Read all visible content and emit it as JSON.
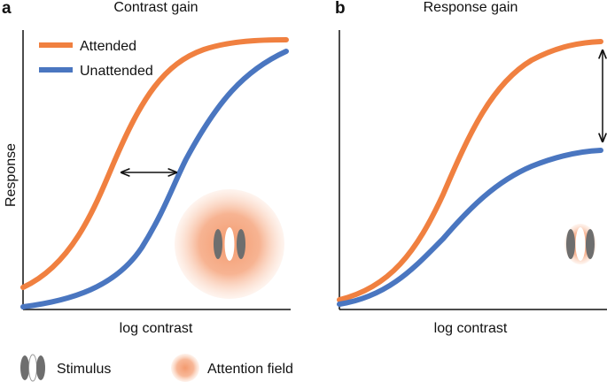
{
  "panels": [
    {
      "letter": "a",
      "title": "Contrast gain",
      "xlabel": "log contrast",
      "ylabel": "Response",
      "legend": [
        {
          "label": "Attended",
          "color": "#f08040"
        },
        {
          "label": "Unattended",
          "color": "#4a76c0"
        }
      ]
    },
    {
      "letter": "b",
      "title": "Response gain",
      "xlabel": "log contrast"
    }
  ],
  "key": {
    "stimulus_label": "Stimulus",
    "attention_label": "Attention field"
  },
  "colors": {
    "attended": "#f08040",
    "unattended": "#4a76c0",
    "stimulus_bar": "#6e6e6e",
    "attention_field": "#f4a47c",
    "axis": "#111111"
  },
  "icons": {
    "double_arrow": "double-arrow-icon",
    "stimulus": "stimulus-gabor-icon",
    "attention_field": "attention-field-icon"
  }
}
